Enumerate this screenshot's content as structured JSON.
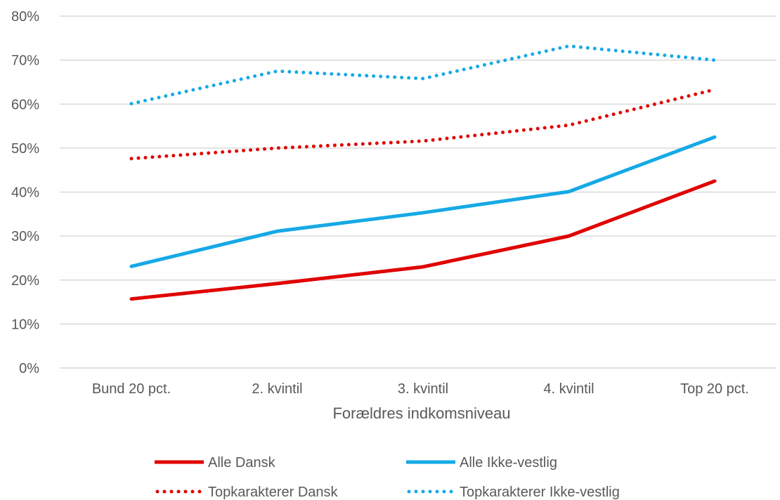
{
  "chart_data": {
    "type": "line",
    "categories": [
      "Bund 20 pct.",
      "2. kvintil",
      "3. kvintil",
      "4. kvintil",
      "Top 20 pct."
    ],
    "xlabel": "Forældres indkomsniveau",
    "ylabel": "",
    "ylim": [
      0,
      80
    ],
    "yticks": [
      "0%",
      "10%",
      "20%",
      "30%",
      "40%",
      "50%",
      "60%",
      "70%",
      "80%"
    ],
    "grid": true,
    "legend_position": "bottom",
    "series": [
      {
        "name": "Alle Dansk",
        "values": [
          15.7,
          19.2,
          23.0,
          30.0,
          42.5
        ],
        "color": "#e00000",
        "style": "solid"
      },
      {
        "name": "Alle Ikke-vestlig",
        "values": [
          23.1,
          31.1,
          35.3,
          40.1,
          52.5
        ],
        "color": "#16a9e6",
        "style": "solid"
      },
      {
        "name": "Topkarakterer Dansk",
        "values": [
          47.6,
          50.0,
          51.6,
          55.2,
          63.3
        ],
        "color": "#e00000",
        "style": "dotted"
      },
      {
        "name": "Topkarakterer Ikke-vestlig",
        "values": [
          60.1,
          67.5,
          65.8,
          73.2,
          70.0
        ],
        "color": "#16a9e6",
        "style": "dotted"
      }
    ]
  }
}
